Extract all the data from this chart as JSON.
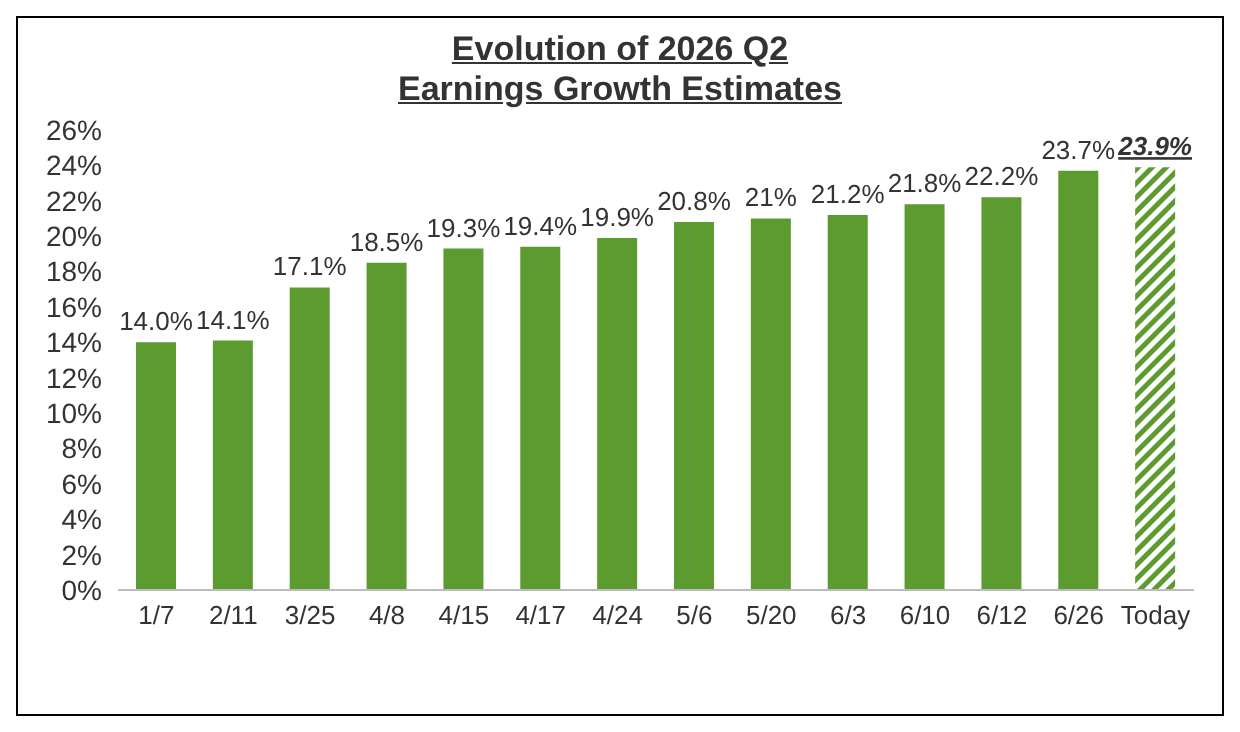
{
  "chart_data": {
    "type": "bar",
    "title": "Evolution of 2026 Q2\nEarnings Growth Estimates",
    "categories": [
      "1/7",
      "2/11",
      "3/25",
      "4/8",
      "4/15",
      "4/17",
      "4/24",
      "5/6",
      "5/20",
      "6/3",
      "6/10",
      "6/12",
      "6/26",
      "Today"
    ],
    "values": [
      14.0,
      14.1,
      17.1,
      18.5,
      19.3,
      19.4,
      19.9,
      20.8,
      21,
      21.2,
      21.8,
      22.2,
      23.7,
      23.9
    ],
    "value_labels": [
      "14.0%",
      "14.1%",
      "17.1%",
      "18.5%",
      "19.3%",
      "19.4%",
      "19.9%",
      "20.8%",
      "21%",
      "21.2%",
      "21.8%",
      "22.2%",
      "23.7%",
      "23.9%"
    ],
    "color": "#5b9b2f",
    "ylim": [
      0,
      26
    ],
    "yticks": [
      {
        "value": 0,
        "label": "0%"
      },
      {
        "value": 2,
        "label": "2%"
      },
      {
        "value": 4,
        "label": "4%"
      },
      {
        "value": 6,
        "label": "6%"
      },
      {
        "value": 8,
        "label": "8%"
      },
      {
        "value": 10,
        "label": "10%"
      },
      {
        "value": 12,
        "label": "12%"
      },
      {
        "value": 14,
        "label": "14%"
      },
      {
        "value": 16,
        "label": "16%"
      },
      {
        "value": 18,
        "label": "18%"
      },
      {
        "value": 20,
        "label": "20%"
      },
      {
        "value": 22,
        "label": "22%"
      },
      {
        "value": 24,
        "label": "24%"
      },
      {
        "value": 26,
        "label": "26%"
      }
    ],
    "grid": false,
    "legend": false
  }
}
